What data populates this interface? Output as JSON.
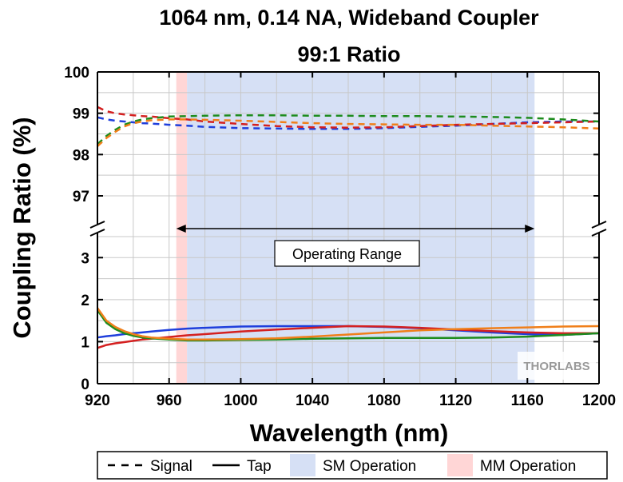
{
  "chart_data": {
    "type": "line",
    "title": "1064 nm, 0.14 NA, Wideband Coupler",
    "subtitle": "99:1 Ratio",
    "xlabel": "Wavelength (nm)",
    "ylabel": "Coupling Ratio (%)",
    "xlim": [
      920,
      1200
    ],
    "x_ticks": [
      "920",
      "960",
      "1000",
      "1040",
      "1080",
      "1120",
      "1160",
      "1200"
    ],
    "y_upper_range": [
      96.4,
      100
    ],
    "y_upper_ticks": [
      "97",
      "98",
      "99",
      "100"
    ],
    "y_lower_range": [
      0,
      3.5
    ],
    "y_lower_ticks": [
      "0",
      "1",
      "2",
      "3"
    ],
    "grid": true,
    "shaded_regions": [
      {
        "name": "MM Operation",
        "x": [
          964,
          970
        ],
        "color": "#ffd6d6"
      },
      {
        "name": "SM Operation",
        "x": [
          970,
          1164
        ],
        "color": "#d6e0f5"
      }
    ],
    "annotation": {
      "text": "Operating Range",
      "x": [
        964,
        1164
      ]
    },
    "x": [
      920,
      925,
      930,
      935,
      940,
      945,
      950,
      960,
      970,
      980,
      1000,
      1020,
      1040,
      1060,
      1080,
      1100,
      1120,
      1140,
      1160,
      1180,
      1200
    ],
    "series": [
      {
        "style": "Signal",
        "color": "#1f3fdc",
        "values": [
          98.9,
          98.85,
          98.82,
          98.8,
          98.78,
          98.76,
          98.75,
          98.72,
          98.7,
          98.67,
          98.64,
          98.63,
          98.62,
          98.62,
          98.64,
          98.67,
          98.7,
          98.74,
          98.78,
          98.8,
          98.8
        ]
      },
      {
        "style": "Signal",
        "color": "#d42020",
        "values": [
          99.15,
          99.05,
          99.0,
          98.97,
          98.95,
          98.93,
          98.92,
          98.88,
          98.85,
          98.8,
          98.74,
          98.69,
          98.66,
          98.65,
          98.66,
          98.69,
          98.72,
          98.74,
          98.76,
          98.78,
          98.8
        ]
      },
      {
        "style": "Signal",
        "color": "#1e8c1e",
        "values": [
          98.25,
          98.45,
          98.6,
          98.72,
          98.8,
          98.85,
          98.88,
          98.92,
          98.93,
          98.94,
          98.95,
          98.95,
          98.94,
          98.94,
          98.93,
          98.93,
          98.92,
          98.91,
          98.89,
          98.85,
          98.8
        ]
      },
      {
        "style": "Signal",
        "color": "#f07f1a",
        "values": [
          98.2,
          98.4,
          98.55,
          98.68,
          98.76,
          98.8,
          98.83,
          98.85,
          98.85,
          98.84,
          98.82,
          98.79,
          98.76,
          98.74,
          98.73,
          98.72,
          98.72,
          98.7,
          98.68,
          98.66,
          98.63
        ]
      },
      {
        "style": "Tap",
        "color": "#1f3fdc",
        "values": [
          1.1,
          1.13,
          1.15,
          1.18,
          1.2,
          1.22,
          1.24,
          1.28,
          1.31,
          1.33,
          1.36,
          1.37,
          1.37,
          1.37,
          1.35,
          1.32,
          1.27,
          1.22,
          1.18,
          1.16,
          1.2
        ]
      },
      {
        "style": "Tap",
        "color": "#d42020",
        "values": [
          0.85,
          0.92,
          0.96,
          0.99,
          1.02,
          1.05,
          1.07,
          1.11,
          1.15,
          1.18,
          1.24,
          1.29,
          1.33,
          1.37,
          1.36,
          1.33,
          1.29,
          1.25,
          1.22,
          1.2,
          1.2
        ]
      },
      {
        "style": "Tap",
        "color": "#1e8c1e",
        "values": [
          1.75,
          1.45,
          1.3,
          1.2,
          1.14,
          1.1,
          1.08,
          1.05,
          1.03,
          1.03,
          1.04,
          1.05,
          1.07,
          1.08,
          1.09,
          1.09,
          1.09,
          1.1,
          1.12,
          1.16,
          1.2
        ]
      },
      {
        "style": "Tap",
        "color": "#f07f1a",
        "values": [
          1.8,
          1.5,
          1.35,
          1.25,
          1.18,
          1.13,
          1.1,
          1.07,
          1.05,
          1.05,
          1.06,
          1.08,
          1.12,
          1.17,
          1.22,
          1.27,
          1.3,
          1.32,
          1.34,
          1.36,
          1.37
        ]
      }
    ],
    "legend": {
      "placement": "bottom",
      "items": [
        {
          "label": "Signal",
          "style": "dashed"
        },
        {
          "label": "Tap",
          "style": "solid"
        },
        {
          "label": "SM Operation",
          "style": "swatch",
          "color": "#d6e0f5"
        },
        {
          "label": "MM Operation",
          "style": "swatch",
          "color": "#ffd6d6"
        }
      ]
    },
    "watermark": "THORLABS"
  }
}
